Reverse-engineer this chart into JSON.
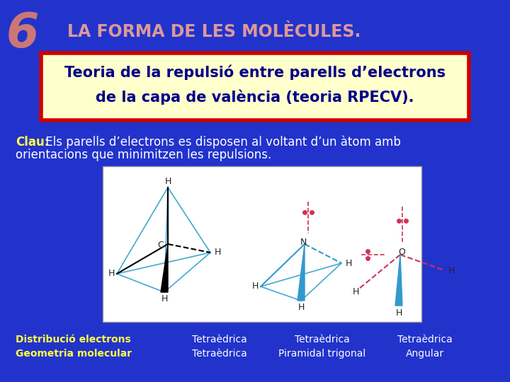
{
  "bg_color": "#2233CC",
  "header_number": "6",
  "header_number_color": "#CC7777",
  "header_title": "LA FORMA DE LES MOLÈCULES.",
  "header_title_color": "#DD9999",
  "box_bg_color": "#FFFFCC",
  "box_border_color": "#CC0000",
  "box_line1": "Teoria de la repulsió entre parells d’electrons",
  "box_line2": "de la capa de valència (teoria RPECV).",
  "box_text_color": "#000088",
  "clau_label": "Clau:",
  "clau_label_color": "#FFFF44",
  "clau_rest1": " Els parells d’electrons es disposen al voltant d’un àtom amb",
  "clau_rest2": "orientacions que minimitzen les repulsions.",
  "clau_text_color": "#FFFFFF",
  "footer_labels_color": "#FFFF44",
  "footer_values_color": "#FFFFFF",
  "footer_label1": "Distribució electrons",
  "footer_label2": "Geometria molecular",
  "col1_val1": "Tetraèdrica",
  "col1_val2": "Tetraèdrica",
  "col2_val1": "Tetraèdrica",
  "col2_val2": "Piramidal trigonal",
  "col3_val1": "Tetraèdrica",
  "col3_val2": "Angular",
  "image_area_bg": "#FFFFFF",
  "cyan_color": "#44AACC",
  "black_bond": "#000000",
  "blue_bond": "#3399CC",
  "lone_pair_color": "#CC3355",
  "atom_label_color": "#222222"
}
